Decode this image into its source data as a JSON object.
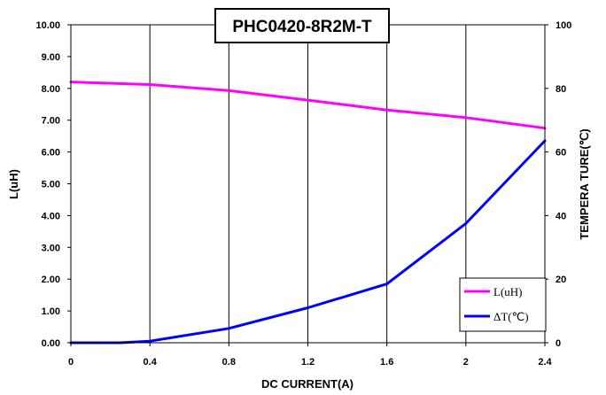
{
  "chart_data": {
    "type": "line",
    "title": "PHC0420-8R2M-T",
    "xlabel": "DC CURRENT(A)",
    "ylabel": "L(uH)",
    "y2label": "TEMPERA TURE(℃)",
    "xlim": [
      0,
      2.4
    ],
    "ylim": [
      0,
      10
    ],
    "y2lim": [
      0,
      100
    ],
    "x_ticks": [
      "0",
      "0.4",
      "0.8",
      "1.2",
      "1.6",
      "2",
      "2.4"
    ],
    "y_ticks": [
      "0.00",
      "1.00",
      "2.00",
      "3.00",
      "4.00",
      "5.00",
      "6.00",
      "7.00",
      "8.00",
      "9.00",
      "10.00"
    ],
    "y2_ticks": [
      "0",
      "20",
      "40",
      "60",
      "80",
      "100"
    ],
    "grid": {
      "x": true,
      "y": false
    },
    "legend_position": "bottom-right",
    "series": [
      {
        "name": "L(uH)",
        "axis": "left",
        "color": "#ff00ff",
        "x": [
          0,
          0.4,
          0.8,
          1.2,
          1.6,
          2.0,
          2.4
        ],
        "y": [
          8.2,
          8.12,
          7.93,
          7.63,
          7.32,
          7.08,
          6.75
        ]
      },
      {
        "name": "ΔT(℃)",
        "axis": "right",
        "color": "#0000ff",
        "x": [
          0,
          0.25,
          0.4,
          0.8,
          1.2,
          1.6,
          2.0,
          2.4
        ],
        "y": [
          0,
          0,
          0.5,
          4.5,
          11,
          18.5,
          37.5,
          63.5
        ]
      }
    ]
  }
}
